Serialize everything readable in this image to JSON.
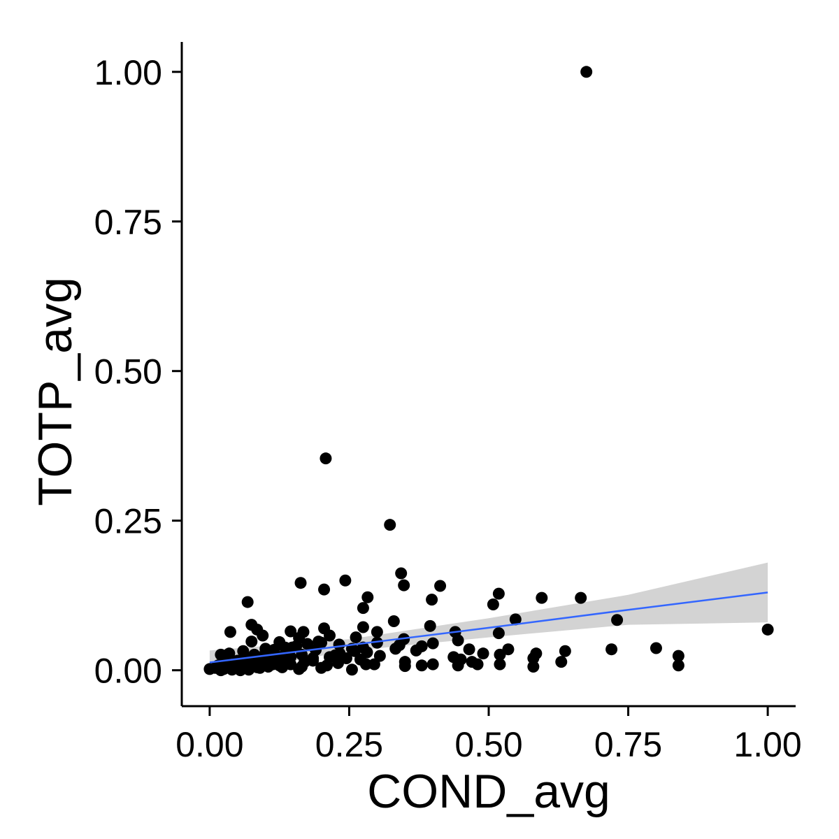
{
  "chart_data": {
    "type": "scatter",
    "title": "",
    "xlabel": "COND_avg",
    "ylabel": "TOTP_avg",
    "xlim": [
      -0.05,
      1.05
    ],
    "ylim": [
      -0.06,
      1.05
    ],
    "grid": false,
    "x_ticks": [
      {
        "value": 0.0,
        "label": "0.00"
      },
      {
        "value": 0.25,
        "label": "0.25"
      },
      {
        "value": 0.5,
        "label": "0.50"
      },
      {
        "value": 0.75,
        "label": "0.75"
      },
      {
        "value": 1.0,
        "label": "1.00"
      }
    ],
    "y_ticks": [
      {
        "value": 0.0,
        "label": "0.00"
      },
      {
        "value": 0.25,
        "label": "0.25"
      },
      {
        "value": 0.5,
        "label": "0.50"
      },
      {
        "value": 0.75,
        "label": "0.75"
      },
      {
        "value": 1.0,
        "label": "1.00"
      }
    ],
    "point_color": "#000000",
    "trend": {
      "method": "linear",
      "color": "#3366ff",
      "band_color": "#d3d3d3",
      "points": [
        [
          0.0,
          0.013
        ],
        [
          0.25,
          0.042
        ],
        [
          0.5,
          0.071
        ],
        [
          0.75,
          0.101
        ],
        [
          1.0,
          0.13
        ]
      ],
      "band_lower": [
        [
          0.0,
          -0.007
        ],
        [
          0.25,
          0.032
        ],
        [
          0.5,
          0.055
        ],
        [
          0.75,
          0.076
        ],
        [
          1.0,
          0.08
        ]
      ],
      "band_upper": [
        [
          0.0,
          0.033
        ],
        [
          0.25,
          0.052
        ],
        [
          0.5,
          0.087
        ],
        [
          0.75,
          0.126
        ],
        [
          1.0,
          0.18
        ]
      ]
    },
    "points": [
      [
        0.675,
        1.0
      ],
      [
        0.208,
        0.354
      ],
      [
        0.323,
        0.243
      ],
      [
        0.343,
        0.162
      ],
      [
        0.348,
        0.142
      ],
      [
        0.413,
        0.141
      ],
      [
        0.243,
        0.15
      ],
      [
        0.163,
        0.146
      ],
      [
        0.205,
        0.135
      ],
      [
        0.068,
        0.114
      ],
      [
        0.518,
        0.128
      ],
      [
        0.595,
        0.121
      ],
      [
        0.665,
        0.121
      ],
      [
        0.283,
        0.122
      ],
      [
        0.398,
        0.118
      ],
      [
        0.508,
        0.11
      ],
      [
        0.275,
        0.104
      ],
      [
        0.548,
        0.085
      ],
      [
        0.73,
        0.084
      ],
      [
        0.33,
        0.082
      ],
      [
        0.075,
        0.076
      ],
      [
        0.395,
        0.074
      ],
      [
        0.275,
        0.072
      ],
      [
        0.205,
        0.07
      ],
      [
        0.085,
        0.068
      ],
      [
        0.037,
        0.064
      ],
      [
        0.145,
        0.065
      ],
      [
        0.168,
        0.064
      ],
      [
        0.3,
        0.064
      ],
      [
        0.44,
        0.064
      ],
      [
        0.518,
        0.062
      ],
      [
        0.095,
        0.058
      ],
      [
        0.215,
        0.058
      ],
      [
        0.262,
        0.055
      ],
      [
        0.16,
        0.054
      ],
      [
        0.348,
        0.052
      ],
      [
        0.445,
        0.05
      ],
      [
        0.075,
        0.048
      ],
      [
        0.125,
        0.047
      ],
      [
        0.2,
        0.046
      ],
      [
        0.3,
        0.046
      ],
      [
        0.4,
        0.045
      ],
      [
        0.232,
        0.043
      ],
      [
        0.34,
        0.042
      ],
      [
        0.38,
        0.04
      ],
      [
        0.148,
        0.038
      ],
      [
        0.1,
        0.036
      ],
      [
        0.255,
        0.036
      ],
      [
        0.333,
        0.036
      ],
      [
        0.465,
        0.035
      ],
      [
        0.535,
        0.035
      ],
      [
        0.72,
        0.035
      ],
      [
        0.8,
        0.037
      ],
      [
        0.637,
        0.032
      ],
      [
        0.37,
        0.033
      ],
      [
        0.19,
        0.034
      ],
      [
        0.06,
        0.032
      ],
      [
        0.11,
        0.03
      ],
      [
        0.282,
        0.03
      ],
      [
        0.585,
        0.028
      ],
      [
        0.49,
        0.028
      ],
      [
        0.52,
        0.026
      ],
      [
        0.035,
        0.028
      ],
      [
        0.02,
        0.026
      ],
      [
        0.165,
        0.026
      ],
      [
        0.225,
        0.025
      ],
      [
        0.305,
        0.024
      ],
      [
        0.84,
        0.024
      ],
      [
        0.437,
        0.022
      ],
      [
        0.58,
        0.02
      ],
      [
        0.128,
        0.022
      ],
      [
        0.092,
        0.02
      ],
      [
        0.245,
        0.02
      ],
      [
        0.27,
        0.018
      ],
      [
        0.45,
        0.018
      ],
      [
        0.47,
        0.014
      ],
      [
        0.63,
        0.014
      ],
      [
        0.06,
        0.016
      ],
      [
        0.185,
        0.016
      ],
      [
        0.35,
        0.014
      ],
      [
        0.48,
        0.01
      ],
      [
        0.52,
        0.01
      ],
      [
        0.4,
        0.01
      ],
      [
        0.23,
        0.012
      ],
      [
        0.28,
        0.01
      ],
      [
        0.295,
        0.01
      ],
      [
        0.113,
        0.01
      ],
      [
        0.145,
        0.01
      ],
      [
        0.38,
        0.008
      ],
      [
        0.445,
        0.008
      ],
      [
        0.58,
        0.006
      ],
      [
        0.84,
        0.008
      ],
      [
        0.35,
        0.007
      ],
      [
        0.21,
        0.008
      ],
      [
        0.165,
        0.006
      ],
      [
        0.015,
        0.008
      ],
      [
        0.045,
        0.006
      ],
      [
        0.085,
        0.005
      ],
      [
        0.13,
        0.005
      ],
      [
        0.2,
        0.004
      ],
      [
        0.16,
        0.002
      ],
      [
        0.255,
        0.001
      ],
      [
        1.0,
        0.068
      ],
      [
        0.0,
        0.002
      ],
      [
        0.02,
        0.0
      ],
      [
        0.04,
        0.001
      ],
      [
        0.055,
        0.0
      ],
      [
        0.07,
        0.001
      ],
      [
        0.09,
        0.004
      ],
      [
        0.105,
        0.006
      ],
      [
        0.125,
        0.008
      ],
      [
        0.14,
        0.012
      ],
      [
        0.17,
        0.014
      ],
      [
        0.185,
        0.02
      ],
      [
        0.215,
        0.022
      ],
      [
        0.233,
        0.028
      ],
      [
        0.26,
        0.032
      ],
      [
        0.275,
        0.038
      ],
      [
        0.045,
        0.004
      ],
      [
        0.06,
        0.008
      ],
      [
        0.075,
        0.012
      ],
      [
        0.09,
        0.016
      ],
      [
        0.105,
        0.02
      ],
      [
        0.12,
        0.024
      ],
      [
        0.03,
        0.012
      ],
      [
        0.05,
        0.016
      ],
      [
        0.065,
        0.022
      ],
      [
        0.08,
        0.026
      ],
      [
        0.1,
        0.03
      ],
      [
        0.115,
        0.034
      ],
      [
        0.135,
        0.038
      ],
      [
        0.155,
        0.04
      ],
      [
        0.175,
        0.044
      ],
      [
        0.195,
        0.048
      ],
      [
        0.11,
        0.018
      ],
      [
        0.145,
        0.022
      ],
      [
        0.01,
        0.004
      ],
      [
        0.025,
        0.002
      ],
      [
        0.07,
        0.005
      ],
      [
        0.095,
        0.01
      ]
    ]
  }
}
